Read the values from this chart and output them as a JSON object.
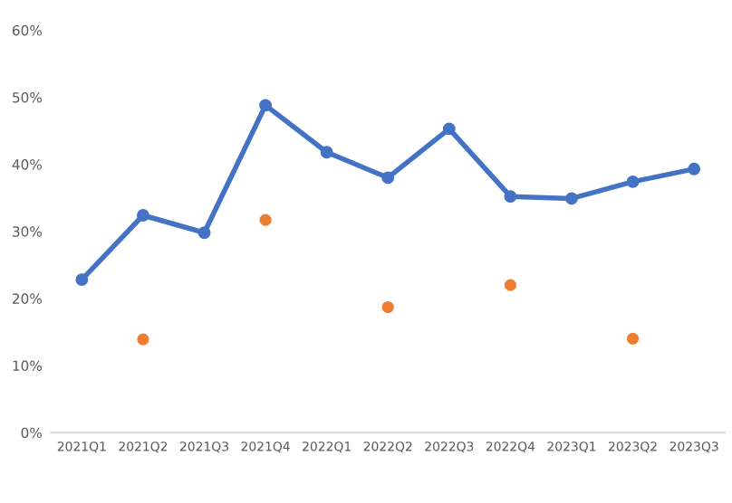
{
  "chart_data": {
    "type": "line",
    "categories": [
      "2021Q1",
      "2021Q2",
      "2021Q3",
      "2021Q4",
      "2022Q1",
      "2022Q2",
      "2022Q3",
      "2022Q4",
      "2023Q1",
      "2023Q2",
      "2023Q3"
    ],
    "series": [
      {
        "color": "#4472c4",
        "marker": "circle",
        "values": [
          22.8,
          32.4,
          29.8,
          48.8,
          41.8,
          38.0,
          45.3,
          35.2,
          34.9,
          37.4,
          39.3
        ]
      },
      {
        "type": "scatter",
        "color": "#ed7d31",
        "marker": "circle",
        "values": [
          null,
          13.9,
          null,
          31.7,
          null,
          18.7,
          null,
          22.0,
          null,
          14.0,
          null
        ]
      }
    ],
    "ylim": [
      0,
      60
    ],
    "yticks": [
      {
        "value": 0,
        "label": "0%"
      },
      {
        "value": 10,
        "label": "10%"
      },
      {
        "value": 20,
        "label": "20%"
      },
      {
        "value": 30,
        "label": "30%"
      },
      {
        "value": 40,
        "label": "40%"
      },
      {
        "value": 50,
        "label": "50%"
      },
      {
        "value": 60,
        "label": "60%"
      }
    ],
    "grid": false
  }
}
